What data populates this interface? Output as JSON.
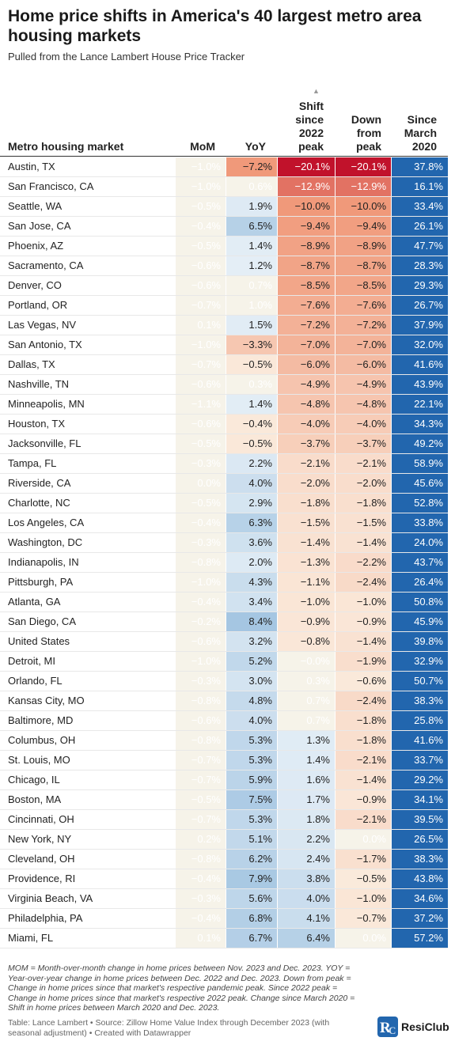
{
  "title": "Home price shifts in America's 40 largest metro area housing markets",
  "subtitle": "Pulled from the Lance Lambert House Price Tracker",
  "chart_data": {
    "type": "table",
    "columns": [
      "Metro housing market",
      "MoM",
      "YoY",
      "Shift since 2022 peak",
      "Down from peak",
      "Since March 2020"
    ],
    "sorted_by": "Shift since 2022 peak",
    "rows": [
      [
        "Austin, TX",
        "−1.0%",
        "−7.2%",
        "−20.1%",
        "−20.1%",
        "37.8%"
      ],
      [
        "San Francisco, CA",
        "−1.0%",
        "0.6%",
        "−12.9%",
        "−12.9%",
        "16.1%"
      ],
      [
        "Seattle, WA",
        "−0.5%",
        "1.9%",
        "−10.0%",
        "−10.0%",
        "33.4%"
      ],
      [
        "San Jose, CA",
        "−0.4%",
        "6.5%",
        "−9.4%",
        "−9.4%",
        "26.1%"
      ],
      [
        "Phoenix, AZ",
        "−0.5%",
        "1.4%",
        "−8.9%",
        "−8.9%",
        "47.7%"
      ],
      [
        "Sacramento, CA",
        "−0.6%",
        "1.2%",
        "−8.7%",
        "−8.7%",
        "28.3%"
      ],
      [
        "Denver, CO",
        "−0.6%",
        "0.7%",
        "−8.5%",
        "−8.5%",
        "29.3%"
      ],
      [
        "Portland, OR",
        "−0.7%",
        "1.0%",
        "−7.6%",
        "−7.6%",
        "26.7%"
      ],
      [
        "Las Vegas, NV",
        "0.1%",
        "1.5%",
        "−7.2%",
        "−7.2%",
        "37.9%"
      ],
      [
        "San Antonio, TX",
        "−1.0%",
        "−3.3%",
        "−7.0%",
        "−7.0%",
        "32.0%"
      ],
      [
        "Dallas, TX",
        "−0.7%",
        "−0.5%",
        "−6.0%",
        "−6.0%",
        "41.6%"
      ],
      [
        "Nashville, TN",
        "−0.6%",
        "0.3%",
        "−4.9%",
        "−4.9%",
        "43.9%"
      ],
      [
        "Minneapolis, MN",
        "−1.1%",
        "1.4%",
        "−4.8%",
        "−4.8%",
        "22.1%"
      ],
      [
        "Houston, TX",
        "−0.6%",
        "−0.4%",
        "−4.0%",
        "−4.0%",
        "34.3%"
      ],
      [
        "Jacksonville, FL",
        "−0.5%",
        "−0.5%",
        "−3.7%",
        "−3.7%",
        "49.2%"
      ],
      [
        "Tampa, FL",
        "−0.3%",
        "2.2%",
        "−2.1%",
        "−2.1%",
        "58.9%"
      ],
      [
        "Riverside, CA",
        "0.0%",
        "4.0%",
        "−2.0%",
        "−2.0%",
        "45.6%"
      ],
      [
        "Charlotte, NC",
        "−0.5%",
        "2.9%",
        "−1.8%",
        "−1.8%",
        "52.8%"
      ],
      [
        "Los Angeles, CA",
        "−0.4%",
        "6.3%",
        "−1.5%",
        "−1.5%",
        "33.8%"
      ],
      [
        "Washington, DC",
        "−0.3%",
        "3.6%",
        "−1.4%",
        "−1.4%",
        "24.0%"
      ],
      [
        "Indianapolis, IN",
        "−0.8%",
        "2.0%",
        "−1.3%",
        "−2.2%",
        "43.7%"
      ],
      [
        "Pittsburgh, PA",
        "−1.0%",
        "4.3%",
        "−1.1%",
        "−2.4%",
        "26.4%"
      ],
      [
        "Atlanta, GA",
        "−0.4%",
        "3.4%",
        "−1.0%",
        "−1.0%",
        "50.8%"
      ],
      [
        "San Diego, CA",
        "−0.2%",
        "8.4%",
        "−0.9%",
        "−0.9%",
        "45.9%"
      ],
      [
        "United States",
        "−0.6%",
        "3.2%",
        "−0.8%",
        "−1.4%",
        "39.8%"
      ],
      [
        "Detroit, MI",
        "−1.0%",
        "5.2%",
        "−0.0%",
        "−1.9%",
        "32.9%"
      ],
      [
        "Orlando, FL",
        "−0.3%",
        "3.0%",
        "0.3%",
        "−0.6%",
        "50.7%"
      ],
      [
        "Kansas City, MO",
        "−0.8%",
        "4.8%",
        "0.7%",
        "−2.4%",
        "38.3%"
      ],
      [
        "Baltimore, MD",
        "−0.6%",
        "4.0%",
        "0.7%",
        "−1.8%",
        "25.8%"
      ],
      [
        "Columbus, OH",
        "−0.8%",
        "5.3%",
        "1.3%",
        "−1.8%",
        "41.6%"
      ],
      [
        "St. Louis, MO",
        "−0.7%",
        "5.3%",
        "1.4%",
        "−2.1%",
        "33.7%"
      ],
      [
        "Chicago, IL",
        "−0.7%",
        "5.9%",
        "1.6%",
        "−1.4%",
        "29.2%"
      ],
      [
        "Boston, MA",
        "−0.5%",
        "7.5%",
        "1.7%",
        "−0.9%",
        "34.1%"
      ],
      [
        "Cincinnati, OH",
        "−0.7%",
        "5.3%",
        "1.8%",
        "−2.1%",
        "39.5%"
      ],
      [
        "New York, NY",
        "0.2%",
        "5.1%",
        "2.2%",
        "0.0%",
        "26.5%"
      ],
      [
        "Cleveland, OH",
        "−0.8%",
        "6.2%",
        "2.4%",
        "−1.7%",
        "38.3%"
      ],
      [
        "Providence, RI",
        "−0.4%",
        "7.9%",
        "3.8%",
        "−0.5%",
        "43.8%"
      ],
      [
        "Virginia Beach, VA",
        "−0.3%",
        "5.6%",
        "4.0%",
        "−1.0%",
        "34.6%"
      ],
      [
        "Philadelphia, PA",
        "−0.4%",
        "6.8%",
        "4.1%",
        "−0.7%",
        "37.2%"
      ],
      [
        "Miami, FL",
        "0.1%",
        "6.7%",
        "6.4%",
        "0.0%",
        "57.2%"
      ]
    ]
  },
  "colors": {
    "since_march_2020": "#2266ae",
    "deep_red": "#c1122b",
    "warm_mid": "#f0997a",
    "pale_warm": "#fbeee0",
    "pale_neutral": "#f6f3e9",
    "light_blue": "#e4eef6",
    "mid_blue": "#a5c6e2"
  },
  "footnote": "MOM = Month-over-month change in home prices between Nov. 2023 and Dec. 2023. YOY = Year-over-year change in home prices between Dec. 2022 and Dec. 2023. Down from peak = Change in home prices since that market's respective pandemic peak. Since 2022 peak = Change in home prices since that market's respective 2022 peak. Change since March 2020 = Shift in home prices between March 2020 and Dec. 2023.",
  "credits": "Table: Lance Lambert • Source: Zillow Home Value Index through December 2023 (with seasonal adjustment) • Created with Datawrapper",
  "logo_text": "ResiClub"
}
